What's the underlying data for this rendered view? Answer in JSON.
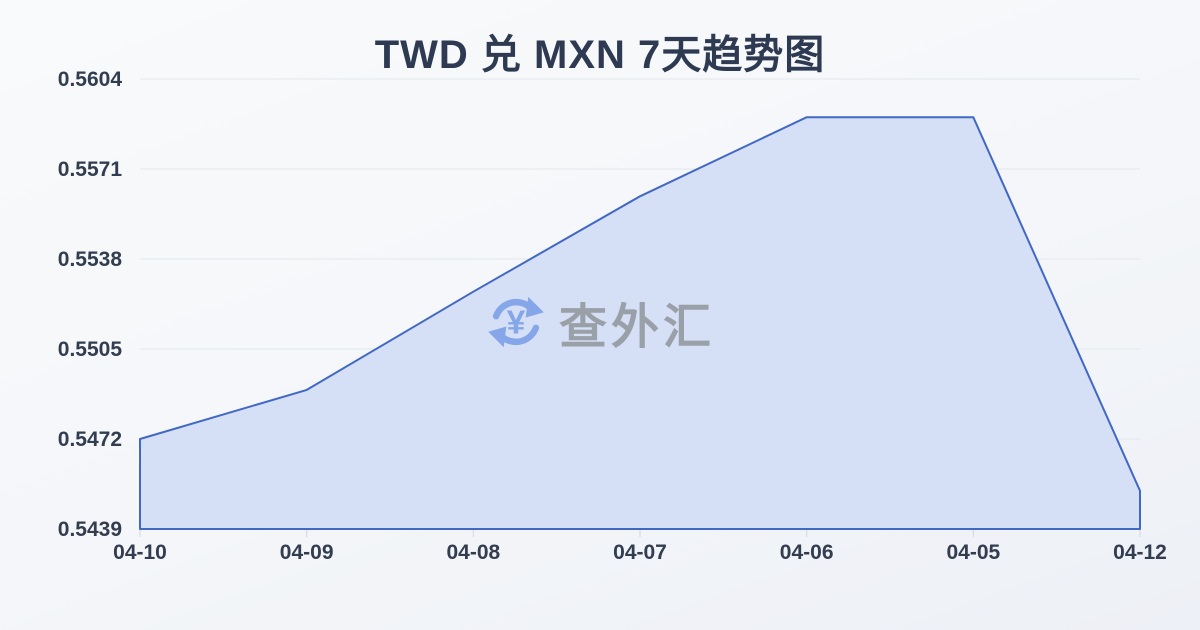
{
  "page": {
    "title": "TWD 兑 MXN 7天趋势图"
  },
  "watermark": {
    "icon": "currency-exchange-icon",
    "symbol": "¥",
    "text": "查外汇"
  },
  "chart_data": {
    "type": "area",
    "title": "TWD 兑 MXN 7天趋势图",
    "categories": [
      "04-10",
      "04-09",
      "04-08",
      "04-07",
      "04-06",
      "04-05",
      "04-12"
    ],
    "values": [
      0.5472,
      0.549,
      0.5526,
      0.5561,
      0.559,
      0.559,
      0.5453
    ],
    "y_ticks": [
      0.5604,
      0.5571,
      0.5538,
      0.5505,
      0.5472,
      0.5439
    ],
    "ylim": [
      0.5439,
      0.5604
    ],
    "xlabel": "",
    "ylabel": "",
    "grid": true,
    "legend": false,
    "colors": {
      "line": "#4268c6",
      "fill": "#d5dff5",
      "grid": "#e4e7ea",
      "tick": "#d3d7dd",
      "label": "#333d50",
      "watermark_icon": "#85a6e8",
      "watermark_text": "#9aa0a8"
    }
  }
}
